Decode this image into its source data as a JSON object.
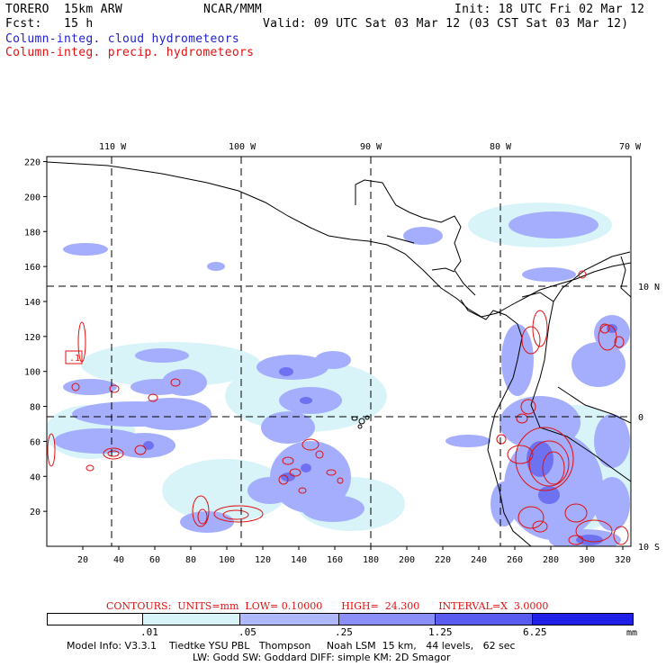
{
  "header": {
    "model": "TORERO  15km ARW",
    "center": "NCAR/MMM",
    "init": "Init: 18 UTC Fri 02 Mar 12",
    "fcst": "Fcst:   15 h",
    "valid": "Valid: 09 UTC Sat 03 Mar 12 (03 CST Sat 03 Mar 12)",
    "field_cloud": "Column-integ. cloud hydrometeors",
    "field_precip": "Column-integ. precip. hydrometeors"
  },
  "map": {
    "lon_labels": [
      "110 W",
      "100 W",
      "90 W",
      "80 W",
      "70 W"
    ],
    "lat_labels": [
      "10 N",
      "0",
      "10 S"
    ],
    "x_ticks": [
      "20",
      "40",
      "60",
      "80",
      "100",
      "120",
      "140",
      "160",
      "180",
      "200",
      "220",
      "240",
      "260",
      "280",
      "300",
      "320"
    ],
    "y_ticks": [
      "20",
      "40",
      "60",
      "80",
      "100",
      "120",
      "140",
      "160",
      "180",
      "200",
      "220"
    ],
    "high_box_label": ".1",
    "colors": {
      "cloud_fill": "#9aa6ff",
      "cloud_dark": "#6e72f0",
      "light_fill": "#d8f4f8",
      "precip": "#e01010"
    }
  },
  "contours": {
    "label": "CONTOURS:  UNITS=mm  LOW= 0.10000      HIGH=  24.300      INTERVAL=X  3.0000"
  },
  "colorbar": {
    "labels": [
      ".01",
      ".05",
      ".25",
      "1.25",
      "6.25"
    ],
    "units": "mm",
    "colors": [
      "#ffffff",
      "#d8f4f8",
      "#b0b8ff",
      "#8a90f8",
      "#5a5cf0",
      "#2020e8"
    ]
  },
  "footer": {
    "line1": "Model Info: V3.3.1    Tiedtke YSU PBL   Thompson     Noah LSM  15 km,   44 levels,   62 sec",
    "line2": "LW: Godd SW: Goddard DIFF: simple KM: 2D Smagor"
  }
}
